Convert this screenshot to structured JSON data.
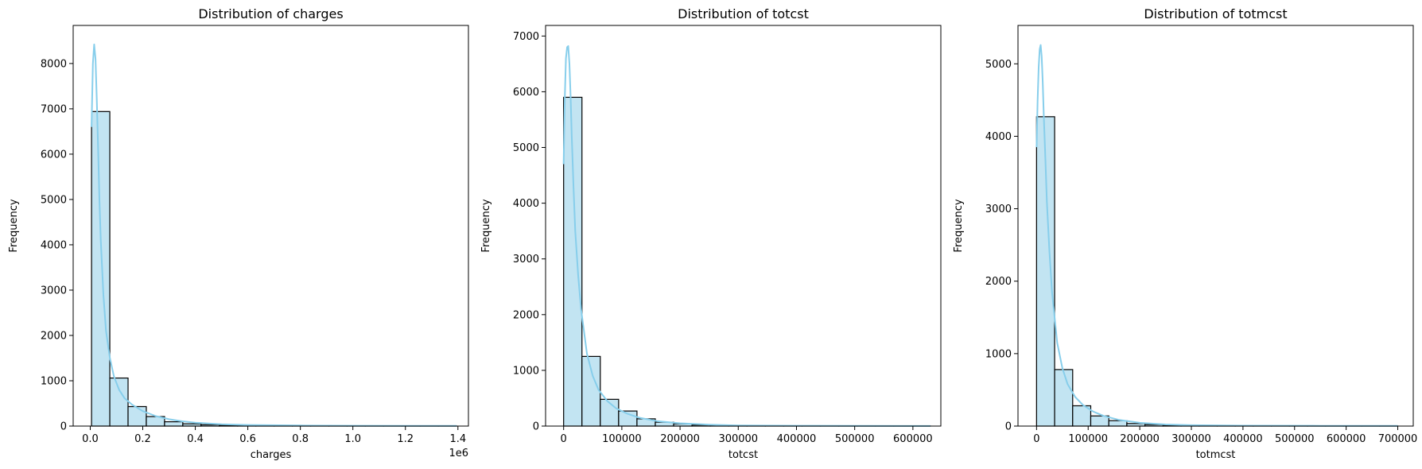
{
  "chart_data": [
    {
      "type": "bar",
      "subtype": "histogram_with_kde",
      "title": "Distribution of charges",
      "xlabel": "charges",
      "ylabel": "Frequency",
      "offset_text": "1e6",
      "x_ticks": [
        0,
        0.2,
        0.4,
        0.6,
        0.8,
        1.0,
        1.2,
        1.4
      ],
      "x_tick_labels": [
        "0.0",
        "0.2",
        "0.4",
        "0.6",
        "0.8",
        "1.0",
        "1.2",
        "1.4"
      ],
      "y_ticks": [
        0,
        1000,
        2000,
        3000,
        4000,
        5000,
        6000,
        7000,
        8000
      ],
      "xlim": [
        -0.065,
        1.44
      ],
      "ylim": [
        0,
        8840
      ],
      "bin_edges": [
        0.005,
        0.0745,
        0.144,
        0.2135,
        0.283,
        0.3525,
        0.422,
        0.4915,
        0.561,
        0.6305,
        0.7,
        0.7695,
        0.839,
        0.9085,
        0.978,
        1.0475,
        1.117,
        1.1865,
        1.256,
        1.3255,
        1.395
      ],
      "values": [
        6940,
        1060,
        430,
        210,
        95,
        50,
        30,
        18,
        10,
        7,
        5,
        4,
        3,
        3,
        2,
        2,
        1,
        1,
        1,
        1
      ],
      "kde_x": [
        0.005,
        0.01,
        0.015,
        0.02,
        0.025,
        0.03,
        0.035,
        0.04,
        0.05,
        0.06,
        0.075,
        0.09,
        0.11,
        0.13,
        0.16,
        0.2,
        0.25,
        0.3,
        0.35,
        0.4,
        0.5,
        0.6,
        0.8,
        1.0,
        1.2,
        1.395
      ],
      "kde_y": [
        6600,
        8000,
        8420,
        8100,
        7200,
        6100,
        5000,
        4100,
        2900,
        2100,
        1500,
        1100,
        800,
        620,
        470,
        330,
        220,
        150,
        105,
        75,
        40,
        25,
        12,
        7,
        5,
        3
      ],
      "colors": {
        "bar_fill": "#c2e4f2",
        "bar_edge": "#000000",
        "kde": "#87ceeb"
      },
      "grid": false
    },
    {
      "type": "bar",
      "subtype": "histogram_with_kde",
      "title": "Distribution of totcst",
      "xlabel": "totcst",
      "ylabel": "Frequency",
      "x_ticks": [
        0,
        100000,
        200000,
        300000,
        400000,
        500000,
        600000
      ],
      "x_tick_labels": [
        "0",
        "100000",
        "200000",
        "300000",
        "400000",
        "500000",
        "600000"
      ],
      "y_ticks": [
        0,
        1000,
        2000,
        3000,
        4000,
        5000,
        6000,
        7000
      ],
      "xlim": [
        -31000,
        648000
      ],
      "ylim": [
        0,
        7190
      ],
      "bin_edges": [
        0,
        31500,
        63000,
        94500,
        126000,
        157500,
        189000,
        220500,
        252000,
        283500,
        315000,
        346500,
        378000,
        409500,
        441000,
        472500,
        504000,
        535500,
        567000,
        598500,
        630000
      ],
      "values": [
        5900,
        1250,
        480,
        270,
        130,
        70,
        40,
        20,
        12,
        8,
        6,
        4,
        3,
        2,
        2,
        1,
        1,
        1,
        1,
        1
      ],
      "kde_x": [
        0,
        2000,
        4000,
        6000,
        8000,
        10000,
        12000,
        14000,
        17000,
        20000,
        25000,
        30000,
        40000,
        50000,
        60000,
        75000,
        90000,
        110000,
        130000,
        160000,
        200000,
        250000,
        300000,
        400000,
        500000,
        630000
      ],
      "kde_y": [
        4700,
        5900,
        6600,
        6800,
        6820,
        6500,
        5900,
        5200,
        4300,
        3500,
        2700,
        2100,
        1300,
        900,
        650,
        450,
        320,
        220,
        150,
        90,
        50,
        25,
        12,
        6,
        4,
        2
      ],
      "colors": {
        "bar_fill": "#c2e4f2",
        "bar_edge": "#000000",
        "kde": "#87ceeb"
      },
      "grid": false
    },
    {
      "type": "bar",
      "subtype": "histogram_with_kde",
      "title": "Distribution of totmcst",
      "xlabel": "totmcst",
      "ylabel": "Frequency",
      "x_ticks": [
        0,
        100000,
        200000,
        300000,
        400000,
        500000,
        600000,
        700000
      ],
      "x_tick_labels": [
        "0",
        "100000",
        "200000",
        "300000",
        "400000",
        "500000",
        "600000",
        "700000"
      ],
      "y_ticks": [
        0,
        1000,
        2000,
        3000,
        4000,
        5000
      ],
      "xlim": [
        -36000,
        730000
      ],
      "ylim": [
        0,
        5530
      ],
      "bin_edges": [
        0,
        35000,
        70000,
        105000,
        140000,
        175000,
        210000,
        245000,
        280000,
        315000,
        350000,
        385000,
        420000,
        455000,
        490000,
        525000,
        560000,
        595000,
        630000,
        665000,
        700000
      ],
      "values": [
        4270,
        780,
        280,
        140,
        75,
        35,
        20,
        12,
        8,
        5,
        4,
        3,
        2,
        2,
        1,
        1,
        1,
        1,
        1,
        1
      ],
      "kde_x": [
        0,
        2000,
        4000,
        6000,
        8000,
        10000,
        12000,
        14000,
        17000,
        20000,
        25000,
        30000,
        40000,
        50000,
        60000,
        75000,
        90000,
        110000,
        130000,
        160000,
        200000,
        250000,
        300000,
        400000,
        550000,
        700000
      ],
      "kde_y": [
        3850,
        4500,
        4950,
        5200,
        5260,
        5100,
        4750,
        4300,
        3700,
        3100,
        2400,
        1850,
        1150,
        800,
        580,
        400,
        290,
        200,
        140,
        85,
        45,
        22,
        12,
        6,
        3,
        2
      ],
      "colors": {
        "bar_fill": "#c2e4f2",
        "bar_edge": "#000000",
        "kde": "#87ceeb"
      },
      "grid": false
    }
  ]
}
